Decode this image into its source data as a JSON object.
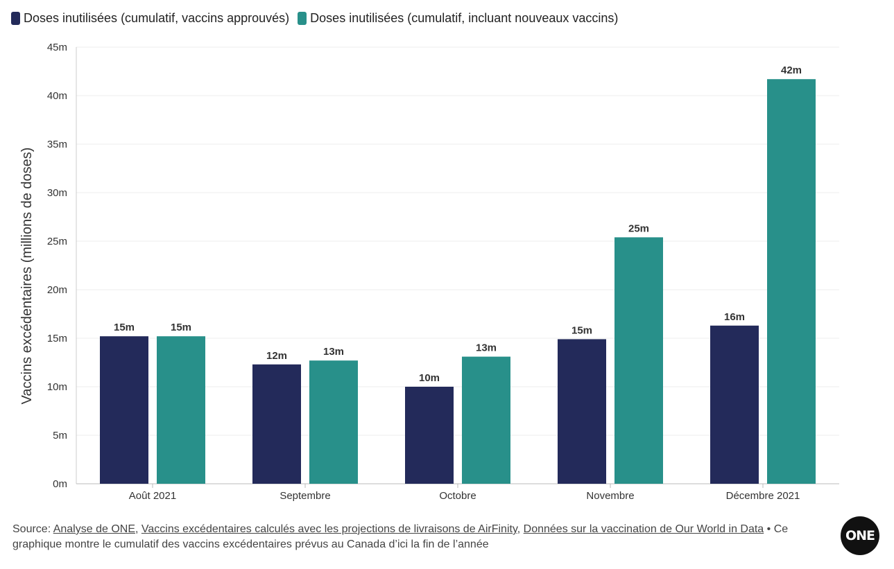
{
  "legend": {
    "approved_label": "Doses inutilisées (cumulatif, vaccins approuvés)",
    "new_label": "Doses inutilisées (cumulatif, incluant nouveaux vaccins)"
  },
  "colors": {
    "approved": "#232a5a",
    "new": "#28908a",
    "grid": "#eeeeee"
  },
  "chart_data": {
    "type": "bar",
    "title": "",
    "xlabel": "",
    "ylabel": "Vaccins excédentaires (millions de doses)",
    "ylim": [
      0,
      45
    ],
    "yticks": [
      0,
      5,
      10,
      15,
      20,
      25,
      30,
      35,
      40,
      45
    ],
    "ytick_labels": [
      "0m",
      "5m",
      "10m",
      "15m",
      "20m",
      "25m",
      "30m",
      "35m",
      "40m",
      "45m"
    ],
    "grid": true,
    "legend_position": "top-left",
    "categories": [
      "Août 2021",
      "Septembre",
      "Octobre",
      "Novembre",
      "Décembre 2021"
    ],
    "series": [
      {
        "name": "Doses inutilisées (cumulatif, vaccins approuvés)",
        "values": [
          15.2,
          12.3,
          10.0,
          14.9,
          16.3
        ],
        "labels": [
          "15m",
          "12m",
          "10m",
          "15m",
          "16m"
        ]
      },
      {
        "name": "Doses inutilisées (cumulatif, incluant nouveaux vaccins)",
        "values": [
          15.2,
          12.7,
          13.1,
          25.4,
          41.7
        ],
        "labels": [
          "15m",
          "13m",
          "13m",
          "25m",
          "42m"
        ]
      }
    ]
  },
  "footer": {
    "source_prefix": "Source: ",
    "link1": "Analyse de ONE",
    "sep1": ", ",
    "link2": "Vaccins excédentaires calculés avec les projections de livraisons de AirFinity",
    "sep2": ", ",
    "link3": "Données sur la vaccination de Our World in Data",
    "note": " • Ce graphique montre le cumulatif des vaccins excédentaires prévus au Canada d’ici la fin de l’année"
  },
  "logo": {
    "text": "ONE"
  }
}
